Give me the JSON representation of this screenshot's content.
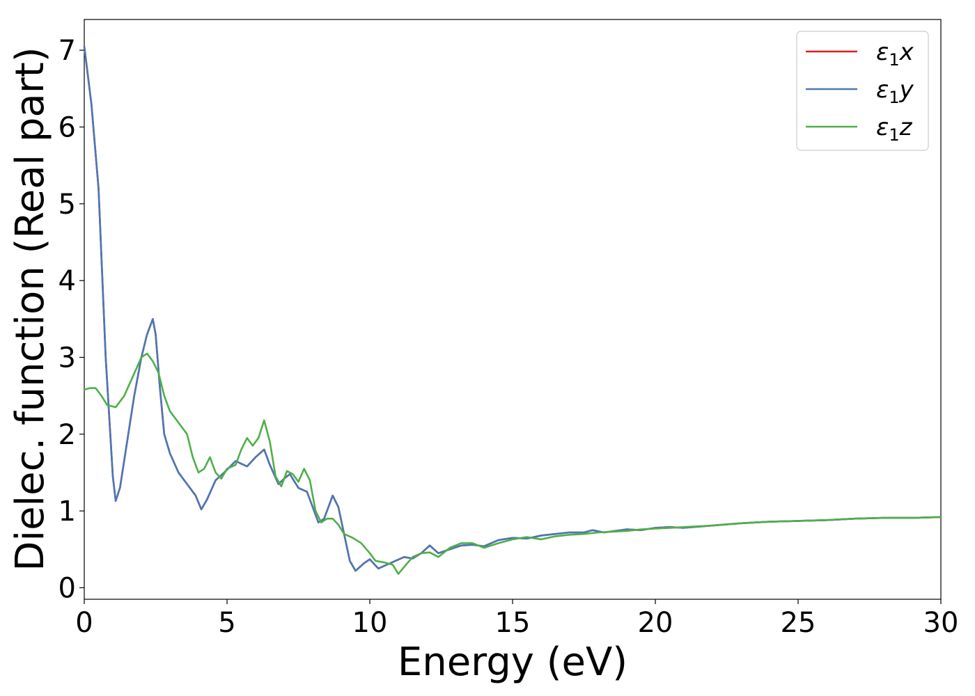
{
  "chart_data": {
    "type": "line",
    "title": "",
    "xlabel": "Energy (eV)",
    "ylabel": "Dielec. function (Real part)",
    "xlim": [
      0,
      30
    ],
    "ylim": [
      -0.15,
      7.4
    ],
    "xticks": [
      0,
      5,
      10,
      15,
      20,
      25,
      30
    ],
    "yticks": [
      0,
      1,
      2,
      3,
      4,
      5,
      6,
      7
    ],
    "grid": false,
    "legend_position": "top-right",
    "series": [
      {
        "name": "ε₁x",
        "legend_base": "ε",
        "legend_sub": "1",
        "legend_axis": "x",
        "color": "#e41a1c",
        "points": [
          [
            0,
            7.05
          ],
          [
            0.25,
            6.3
          ],
          [
            0.5,
            5.2
          ],
          [
            0.75,
            3.0
          ],
          [
            1.0,
            1.45
          ],
          [
            1.1,
            1.13
          ],
          [
            1.25,
            1.3
          ],
          [
            1.5,
            1.9
          ],
          [
            1.75,
            2.5
          ],
          [
            2.0,
            3.0
          ],
          [
            2.2,
            3.3
          ],
          [
            2.4,
            3.5
          ],
          [
            2.5,
            3.3
          ],
          [
            2.65,
            2.6
          ],
          [
            2.8,
            2.0
          ],
          [
            3.0,
            1.75
          ],
          [
            3.3,
            1.5
          ],
          [
            3.6,
            1.35
          ],
          [
            3.9,
            1.2
          ],
          [
            4.1,
            1.02
          ],
          [
            4.3,
            1.15
          ],
          [
            4.6,
            1.4
          ],
          [
            4.9,
            1.5
          ],
          [
            5.3,
            1.65
          ],
          [
            5.7,
            1.58
          ],
          [
            6.0,
            1.7
          ],
          [
            6.3,
            1.8
          ],
          [
            6.5,
            1.6
          ],
          [
            6.8,
            1.35
          ],
          [
            7.0,
            1.42
          ],
          [
            7.2,
            1.48
          ],
          [
            7.5,
            1.3
          ],
          [
            7.8,
            1.25
          ],
          [
            8.0,
            1.05
          ],
          [
            8.2,
            0.85
          ],
          [
            8.4,
            0.9
          ],
          [
            8.7,
            1.2
          ],
          [
            8.9,
            1.05
          ],
          [
            9.1,
            0.7
          ],
          [
            9.3,
            0.35
          ],
          [
            9.5,
            0.22
          ],
          [
            9.8,
            0.32
          ],
          [
            10.0,
            0.37
          ],
          [
            10.3,
            0.25
          ],
          [
            10.6,
            0.3
          ],
          [
            10.9,
            0.35
          ],
          [
            11.2,
            0.4
          ],
          [
            11.5,
            0.38
          ],
          [
            11.8,
            0.45
          ],
          [
            12.1,
            0.55
          ],
          [
            12.4,
            0.45
          ],
          [
            12.8,
            0.5
          ],
          [
            13.2,
            0.55
          ],
          [
            13.6,
            0.56
          ],
          [
            14.0,
            0.54
          ],
          [
            14.5,
            0.62
          ],
          [
            15.0,
            0.65
          ],
          [
            15.5,
            0.64
          ],
          [
            16.0,
            0.68
          ],
          [
            16.5,
            0.7
          ],
          [
            17.0,
            0.72
          ],
          [
            17.5,
            0.72
          ],
          [
            17.8,
            0.75
          ],
          [
            18.2,
            0.72
          ],
          [
            18.6,
            0.74
          ],
          [
            19.0,
            0.76
          ],
          [
            19.5,
            0.75
          ],
          [
            20.0,
            0.78
          ],
          [
            20.5,
            0.79
          ],
          [
            21.0,
            0.78
          ],
          [
            22.0,
            0.81
          ],
          [
            23.0,
            0.84
          ],
          [
            24.0,
            0.86
          ],
          [
            25.0,
            0.87
          ],
          [
            26.0,
            0.88
          ],
          [
            27.0,
            0.9
          ],
          [
            28.0,
            0.91
          ],
          [
            29.0,
            0.91
          ],
          [
            30.0,
            0.92
          ]
        ]
      },
      {
        "name": "ε₁y",
        "legend_base": "ε",
        "legend_sub": "1",
        "legend_axis": "y",
        "color": "#4a78b5",
        "points": [
          [
            0,
            7.05
          ],
          [
            0.25,
            6.3
          ],
          [
            0.5,
            5.2
          ],
          [
            0.75,
            3.0
          ],
          [
            1.0,
            1.45
          ],
          [
            1.1,
            1.13
          ],
          [
            1.25,
            1.3
          ],
          [
            1.5,
            1.9
          ],
          [
            1.75,
            2.5
          ],
          [
            2.0,
            3.0
          ],
          [
            2.2,
            3.3
          ],
          [
            2.4,
            3.5
          ],
          [
            2.5,
            3.3
          ],
          [
            2.65,
            2.6
          ],
          [
            2.8,
            2.0
          ],
          [
            3.0,
            1.75
          ],
          [
            3.3,
            1.5
          ],
          [
            3.6,
            1.35
          ],
          [
            3.9,
            1.2
          ],
          [
            4.1,
            1.02
          ],
          [
            4.3,
            1.15
          ],
          [
            4.6,
            1.4
          ],
          [
            4.9,
            1.5
          ],
          [
            5.3,
            1.65
          ],
          [
            5.7,
            1.58
          ],
          [
            6.0,
            1.7
          ],
          [
            6.3,
            1.8
          ],
          [
            6.5,
            1.6
          ],
          [
            6.8,
            1.35
          ],
          [
            7.0,
            1.42
          ],
          [
            7.2,
            1.48
          ],
          [
            7.5,
            1.3
          ],
          [
            7.8,
            1.25
          ],
          [
            8.0,
            1.05
          ],
          [
            8.2,
            0.85
          ],
          [
            8.4,
            0.9
          ],
          [
            8.7,
            1.2
          ],
          [
            8.9,
            1.05
          ],
          [
            9.1,
            0.7
          ],
          [
            9.3,
            0.35
          ],
          [
            9.5,
            0.22
          ],
          [
            9.8,
            0.32
          ],
          [
            10.0,
            0.37
          ],
          [
            10.3,
            0.25
          ],
          [
            10.6,
            0.3
          ],
          [
            10.9,
            0.35
          ],
          [
            11.2,
            0.4
          ],
          [
            11.5,
            0.38
          ],
          [
            11.8,
            0.45
          ],
          [
            12.1,
            0.55
          ],
          [
            12.4,
            0.45
          ],
          [
            12.8,
            0.5
          ],
          [
            13.2,
            0.55
          ],
          [
            13.6,
            0.56
          ],
          [
            14.0,
            0.54
          ],
          [
            14.5,
            0.62
          ],
          [
            15.0,
            0.65
          ],
          [
            15.5,
            0.64
          ],
          [
            16.0,
            0.68
          ],
          [
            16.5,
            0.7
          ],
          [
            17.0,
            0.72
          ],
          [
            17.5,
            0.72
          ],
          [
            17.8,
            0.75
          ],
          [
            18.2,
            0.72
          ],
          [
            18.6,
            0.74
          ],
          [
            19.0,
            0.76
          ],
          [
            19.5,
            0.75
          ],
          [
            20.0,
            0.78
          ],
          [
            20.5,
            0.79
          ],
          [
            21.0,
            0.78
          ],
          [
            22.0,
            0.81
          ],
          [
            23.0,
            0.84
          ],
          [
            24.0,
            0.86
          ],
          [
            25.0,
            0.87
          ],
          [
            26.0,
            0.88
          ],
          [
            27.0,
            0.9
          ],
          [
            28.0,
            0.91
          ],
          [
            29.0,
            0.91
          ],
          [
            30.0,
            0.92
          ]
        ]
      },
      {
        "name": "ε₁z",
        "legend_base": "ε",
        "legend_sub": "1",
        "legend_axis": "z",
        "color": "#4daf4a",
        "points": [
          [
            0,
            2.58
          ],
          [
            0.2,
            2.6
          ],
          [
            0.4,
            2.6
          ],
          [
            0.6,
            2.5
          ],
          [
            0.8,
            2.38
          ],
          [
            1.1,
            2.35
          ],
          [
            1.4,
            2.5
          ],
          [
            1.7,
            2.75
          ],
          [
            2.0,
            3.0
          ],
          [
            2.2,
            3.05
          ],
          [
            2.4,
            2.95
          ],
          [
            2.6,
            2.8
          ],
          [
            2.8,
            2.5
          ],
          [
            3.0,
            2.3
          ],
          [
            3.2,
            2.2
          ],
          [
            3.4,
            2.1
          ],
          [
            3.6,
            2.0
          ],
          [
            3.8,
            1.7
          ],
          [
            4.0,
            1.5
          ],
          [
            4.2,
            1.55
          ],
          [
            4.4,
            1.7
          ],
          [
            4.6,
            1.5
          ],
          [
            4.8,
            1.42
          ],
          [
            5.0,
            1.55
          ],
          [
            5.3,
            1.6
          ],
          [
            5.5,
            1.8
          ],
          [
            5.7,
            1.95
          ],
          [
            5.9,
            1.85
          ],
          [
            6.1,
            1.95
          ],
          [
            6.3,
            2.18
          ],
          [
            6.5,
            1.9
          ],
          [
            6.7,
            1.45
          ],
          [
            6.9,
            1.32
          ],
          [
            7.1,
            1.52
          ],
          [
            7.3,
            1.48
          ],
          [
            7.5,
            1.38
          ],
          [
            7.7,
            1.55
          ],
          [
            7.9,
            1.4
          ],
          [
            8.1,
            1.0
          ],
          [
            8.3,
            0.85
          ],
          [
            8.5,
            0.9
          ],
          [
            8.7,
            0.9
          ],
          [
            8.9,
            0.82
          ],
          [
            9.1,
            0.7
          ],
          [
            9.4,
            0.65
          ],
          [
            9.7,
            0.58
          ],
          [
            10.0,
            0.45
          ],
          [
            10.2,
            0.35
          ],
          [
            10.5,
            0.33
          ],
          [
            10.8,
            0.3
          ],
          [
            11.0,
            0.18
          ],
          [
            11.2,
            0.27
          ],
          [
            11.5,
            0.4
          ],
          [
            11.8,
            0.45
          ],
          [
            12.1,
            0.46
          ],
          [
            12.4,
            0.4
          ],
          [
            12.8,
            0.52
          ],
          [
            13.2,
            0.58
          ],
          [
            13.6,
            0.58
          ],
          [
            14.0,
            0.52
          ],
          [
            14.5,
            0.58
          ],
          [
            15.0,
            0.63
          ],
          [
            15.5,
            0.66
          ],
          [
            16.0,
            0.63
          ],
          [
            16.5,
            0.67
          ],
          [
            17.0,
            0.69
          ],
          [
            17.5,
            0.7
          ],
          [
            18.0,
            0.72
          ],
          [
            18.5,
            0.73
          ],
          [
            19.0,
            0.74
          ],
          [
            19.5,
            0.76
          ],
          [
            20.0,
            0.77
          ],
          [
            20.5,
            0.78
          ],
          [
            21.0,
            0.79
          ],
          [
            22.0,
            0.81
          ],
          [
            23.0,
            0.84
          ],
          [
            24.0,
            0.86
          ],
          [
            25.0,
            0.87
          ],
          [
            26.0,
            0.88
          ],
          [
            27.0,
            0.9
          ],
          [
            28.0,
            0.91
          ],
          [
            29.0,
            0.91
          ],
          [
            30.0,
            0.92
          ]
        ]
      }
    ]
  }
}
